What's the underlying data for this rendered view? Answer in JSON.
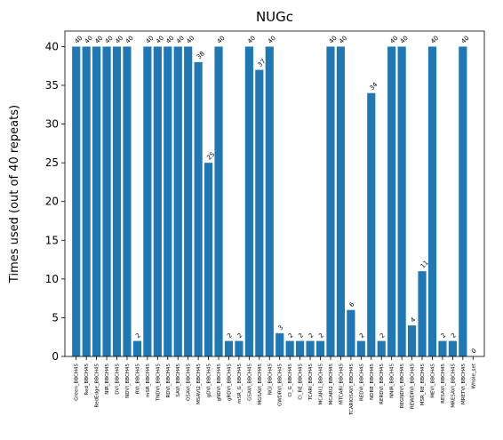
{
  "chart_data": {
    "type": "bar",
    "title": "NUGc",
    "xlabel": "",
    "ylabel": "Times used (out of 40 repeats)",
    "ylim": [
      0,
      42
    ],
    "yticks": [
      0,
      5,
      10,
      15,
      20,
      25,
      30,
      35,
      40
    ],
    "grid": false,
    "bar_color": "#1f77b4",
    "categories": [
      "Green_BBCH45",
      "Red_BBCH45",
      "RedEdge_BBCH45",
      "NIR_BBCH45",
      "DVI_BBCH45",
      "NDVI_BBCH45",
      "RVI_BBCH45",
      "mSR_BBCH45",
      "TNDVI_BBCH45",
      "RDVI_BBCH45",
      "SAVI_BBCH45",
      "OSAVI_BBCH45",
      "MSAVI2_BBCH45",
      "gDVI_BBCH45",
      "gNDVI_BBCH45",
      "gRDVI_BBCH45",
      "mSR_G_BBCH45",
      "GSAVI_BBCH45",
      "MGSAVI_BBCH45",
      "NGI_BBCH45",
      "GWDRVI_BBCH45",
      "CI_G_BBCH45",
      "CI_RE_BBCH45",
      "TCARI_BBCH45",
      "MCARI1_BBCH45",
      "MCARI2_BBCH45",
      "MTCARI_BBCH45",
      "TCARIOSAVI_BBCH45",
      "REDVI_BBCH45",
      "NDRE_BBCH45",
      "RERDVI_BBCH45",
      "NNIR_BBCH45",
      "REGNDVI_BBCH45",
      "REWDRVI_BBCH45",
      "MSR_RE_BBCH45",
      "MEVI_BBCH45",
      "RESAVI_BBCH45",
      "MRESAVI_BBCH45",
      "MRETVI_BBCH45",
      "Whole_set"
    ],
    "values": [
      40,
      40,
      40,
      40,
      40,
      40,
      2,
      40,
      40,
      40,
      40,
      40,
      38,
      25,
      40,
      2,
      2,
      40,
      37,
      40,
      3,
      2,
      2,
      2,
      2,
      40,
      40,
      6,
      2,
      34,
      2,
      40,
      40,
      4,
      11,
      40,
      2,
      2,
      40,
      0
    ],
    "data_labels": [
      "40",
      "40",
      "40",
      "40",
      "40",
      "40",
      "2",
      "40",
      "40",
      "40",
      "40",
      "40",
      "38",
      "25",
      "40",
      "2",
      "2",
      "40",
      "37",
      "40",
      "3",
      "2",
      "2",
      "2",
      "2",
      "40",
      "40",
      "6",
      "2",
      "34",
      "2",
      "40",
      "40",
      "4",
      "11",
      "40",
      "2",
      "2",
      "40",
      "0"
    ]
  }
}
